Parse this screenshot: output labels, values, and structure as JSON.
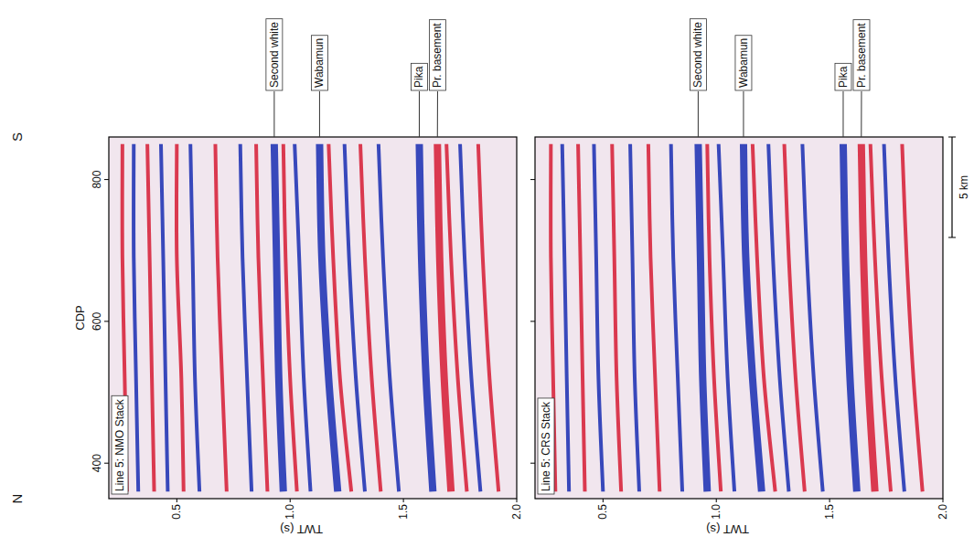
{
  "chart_data": [
    {
      "type": "seismic_section",
      "title": "Line 5: NMO Stack",
      "x_label": "CDP",
      "y_label": "TWT (s)",
      "x": [
        360,
        520,
        690,
        850
      ],
      "xlim": [
        350,
        860
      ],
      "xticks": [
        400,
        600,
        800
      ],
      "ylim": [
        0.2,
        2.0
      ],
      "yticks": [
        0.5,
        {
          "value": 1,
          "label": "1.0"
        },
        1.5,
        {
          "value": 2,
          "label": "2.0"
        }
      ],
      "series": [
        {
          "name": "Second white",
          "color": "#2436b5",
          "values": [
            0.97,
            0.95,
            0.94,
            0.93
          ]
        },
        {
          "name": "Wabamun",
          "color": "#2436b5",
          "values": [
            1.21,
            1.17,
            1.14,
            1.13
          ]
        },
        {
          "name": "Pika",
          "color": "#2436b5",
          "values": [
            1.63,
            1.6,
            1.58,
            1.57
          ]
        },
        {
          "name": "Pr. basement",
          "color": "#d7263d",
          "values": [
            1.71,
            1.68,
            1.66,
            1.65
          ]
        }
      ],
      "reflectors": [
        {
          "color": "#d7263d",
          "values": [
            0.28,
            0.27,
            0.26,
            0.26
          ]
        },
        {
          "color": "#2436b5",
          "values": [
            0.33,
            0.32,
            0.31,
            0.31
          ]
        },
        {
          "color": "#d7263d",
          "values": [
            0.4,
            0.39,
            0.38,
            0.37
          ]
        },
        {
          "color": "#2436b5",
          "values": [
            0.46,
            0.45,
            0.44,
            0.43
          ]
        },
        {
          "color": "#d7263d",
          "values": [
            0.53,
            0.52,
            0.5,
            0.5
          ]
        },
        {
          "color": "#2436b5",
          "values": [
            0.6,
            0.58,
            0.57,
            0.56
          ]
        },
        {
          "color": "#d7263d",
          "values": [
            0.72,
            0.7,
            0.68,
            0.67
          ]
        },
        {
          "color": "#2436b5",
          "values": [
            0.83,
            0.81,
            0.79,
            0.78
          ]
        },
        {
          "color": "#d7263d",
          "values": [
            0.9,
            0.88,
            0.86,
            0.85
          ]
        },
        {
          "color": "#d7263d",
          "values": [
            1.03,
            1.0,
            0.98,
            0.97
          ]
        },
        {
          "color": "#2436b5",
          "values": [
            1.09,
            1.06,
            1.04,
            1.02
          ]
        },
        {
          "color": "#d7263d",
          "values": [
            1.27,
            1.22,
            1.19,
            1.17
          ]
        },
        {
          "color": "#2436b5",
          "values": [
            1.33,
            1.29,
            1.26,
            1.24
          ]
        },
        {
          "color": "#d7263d",
          "values": [
            1.4,
            1.36,
            1.33,
            1.31
          ]
        },
        {
          "color": "#2436b5",
          "values": [
            1.48,
            1.44,
            1.41,
            1.39
          ]
        },
        {
          "color": "#d7263d",
          "values": [
            1.78,
            1.74,
            1.71,
            1.69
          ]
        },
        {
          "color": "#2436b5",
          "values": [
            1.84,
            1.8,
            1.77,
            1.75
          ]
        },
        {
          "color": "#d7263d",
          "values": [
            1.92,
            1.88,
            1.85,
            1.83
          ]
        }
      ]
    },
    {
      "type": "seismic_section",
      "title": "Line 5: CRS Stack",
      "y_label": "TWT (s)",
      "tick_labels": "y",
      "x": [
        360,
        520,
        690,
        850
      ],
      "xlim": [
        350,
        860
      ],
      "xticks": [
        400,
        600,
        800
      ],
      "ylim": [
        0.2,
        2.0
      ],
      "yticks": [
        0.5,
        {
          "value": 1,
          "label": "1.0"
        },
        1.5,
        {
          "value": 2,
          "label": "2.0"
        }
      ],
      "series": [
        {
          "name": "Second white",
          "color": "#2436b5",
          "values": [
            0.96,
            0.94,
            0.93,
            0.92
          ]
        },
        {
          "name": "Wabamun",
          "color": "#2436b5",
          "values": [
            1.2,
            1.16,
            1.13,
            1.12
          ]
        },
        {
          "name": "Pika",
          "color": "#2436b5",
          "values": [
            1.62,
            1.59,
            1.57,
            1.56
          ]
        },
        {
          "name": "Pr. basement",
          "color": "#d7263d",
          "values": [
            1.7,
            1.67,
            1.65,
            1.64
          ]
        }
      ],
      "reflectors": [
        {
          "color": "#d7263d",
          "values": [
            0.29,
            0.28,
            0.27,
            0.27
          ]
        },
        {
          "color": "#2436b5",
          "values": [
            0.35,
            0.34,
            0.33,
            0.32
          ]
        },
        {
          "color": "#d7263d",
          "values": [
            0.42,
            0.41,
            0.4,
            0.39
          ]
        },
        {
          "color": "#2436b5",
          "values": [
            0.5,
            0.48,
            0.47,
            0.46
          ]
        },
        {
          "color": "#d7263d",
          "values": [
            0.58,
            0.56,
            0.55,
            0.54
          ]
        },
        {
          "color": "#2436b5",
          "values": [
            0.66,
            0.64,
            0.63,
            0.62
          ]
        },
        {
          "color": "#d7263d",
          "values": [
            0.75,
            0.73,
            0.71,
            0.7
          ]
        },
        {
          "color": "#2436b5",
          "values": [
            0.85,
            0.83,
            0.81,
            0.8
          ]
        },
        {
          "color": "#d7263d",
          "values": [
            1.02,
            0.99,
            0.97,
            0.96
          ]
        },
        {
          "color": "#2436b5",
          "values": [
            1.08,
            1.05,
            1.03,
            1.01
          ]
        },
        {
          "color": "#d7263d",
          "values": [
            1.26,
            1.21,
            1.18,
            1.16
          ]
        },
        {
          "color": "#2436b5",
          "values": [
            1.32,
            1.28,
            1.25,
            1.23
          ]
        },
        {
          "color": "#d7263d",
          "values": [
            1.39,
            1.35,
            1.32,
            1.3
          ]
        },
        {
          "color": "#2436b5",
          "values": [
            1.47,
            1.43,
            1.4,
            1.38
          ]
        },
        {
          "color": "#d7263d",
          "values": [
            1.77,
            1.73,
            1.7,
            1.68
          ]
        },
        {
          "color": "#2436b5",
          "values": [
            1.83,
            1.79,
            1.76,
            1.74
          ]
        },
        {
          "color": "#d7263d",
          "values": [
            1.91,
            1.87,
            1.84,
            1.82
          ]
        }
      ]
    }
  ],
  "figure": {
    "north": "N",
    "south": "S",
    "scale_bar": "5 km"
  }
}
